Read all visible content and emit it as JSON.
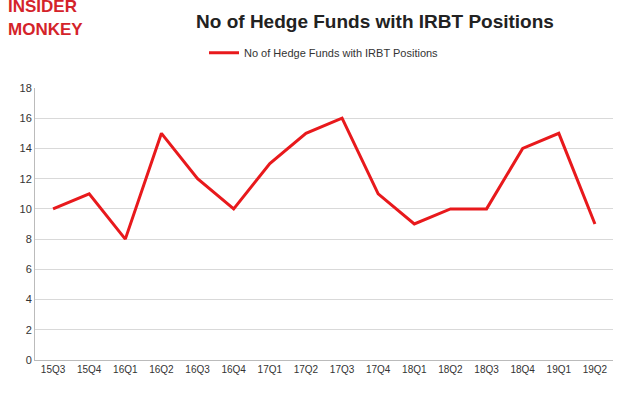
{
  "chart_data": {
    "type": "line",
    "title": "No of Hedge Funds with IRBT Positions",
    "annotations": [
      "INSIDER",
      "MONKEY"
    ],
    "categories": [
      "15Q3",
      "15Q4",
      "16Q1",
      "16Q2",
      "16Q3",
      "16Q4",
      "17Q1",
      "17Q2",
      "17Q3",
      "17Q4",
      "18Q1",
      "18Q2",
      "18Q3",
      "18Q4",
      "19Q1",
      "19Q2"
    ],
    "series": [
      {
        "name": "No of Hedge Funds with IRBT Positions",
        "color": "#e8191c",
        "values": [
          10,
          11,
          8,
          15,
          12,
          10,
          13,
          15,
          16,
          11,
          9,
          10,
          10,
          14,
          15,
          9
        ]
      }
    ],
    "ylim": [
      0,
      18
    ],
    "yticks": [
      0,
      2,
      4,
      6,
      8,
      10,
      12,
      14,
      16,
      18
    ],
    "grid": true,
    "legend": "top"
  }
}
